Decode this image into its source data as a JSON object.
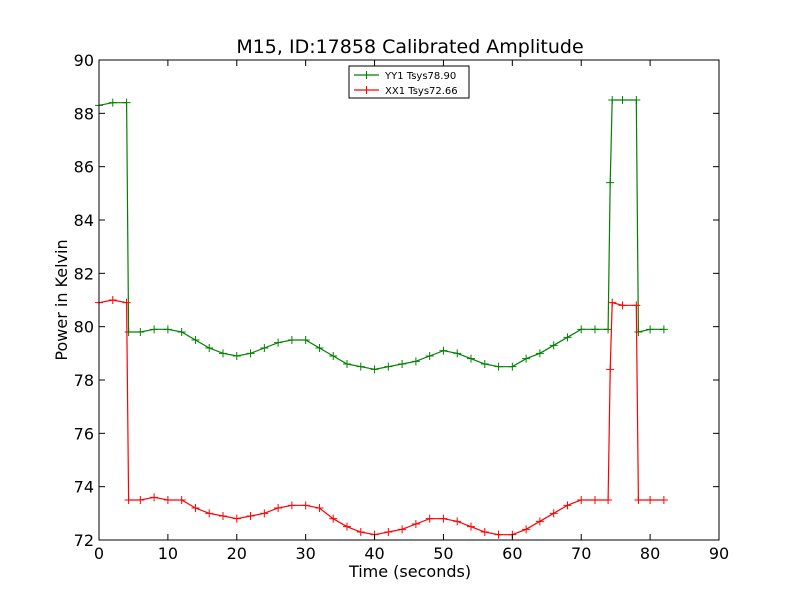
{
  "chart_data": {
    "type": "line",
    "title": "M15, ID:17858 Calibrated Amplitude",
    "xlabel": "Time (seconds)",
    "ylabel": "Power in Kelvin",
    "xlim": [
      0,
      90
    ],
    "ylim": [
      72,
      90
    ],
    "xticks": [
      0,
      10,
      20,
      30,
      40,
      50,
      60,
      70,
      80,
      90
    ],
    "yticks": [
      72,
      74,
      76,
      78,
      80,
      82,
      84,
      86,
      88,
      90
    ],
    "grid": false,
    "legend_position": "top-center",
    "series": [
      {
        "name": "YY1 Tsys78.90",
        "color": "#008000",
        "marker": "+",
        "x": [
          0,
          2,
          4,
          4.3,
          6,
          8,
          10,
          12,
          14,
          16,
          18,
          20,
          22,
          24,
          26,
          28,
          30,
          32,
          34,
          36,
          38,
          40,
          42,
          44,
          46,
          48,
          50,
          52,
          54,
          56,
          58,
          60,
          62,
          64,
          66,
          68,
          70,
          72,
          73.9,
          74.2,
          74.5,
          76,
          78,
          78.3,
          80,
          82
        ],
        "y": [
          88.3,
          88.4,
          88.4,
          79.8,
          79.8,
          79.9,
          79.9,
          79.8,
          79.5,
          79.2,
          79.0,
          78.9,
          79.0,
          79.2,
          79.4,
          79.5,
          79.5,
          79.2,
          78.9,
          78.6,
          78.5,
          78.4,
          78.5,
          78.6,
          78.7,
          78.9,
          79.1,
          79.0,
          78.8,
          78.6,
          78.5,
          78.5,
          78.8,
          79.0,
          79.3,
          79.6,
          79.9,
          79.9,
          79.9,
          85.4,
          88.5,
          88.5,
          88.5,
          79.8,
          79.9,
          79.9
        ]
      },
      {
        "name": "XX1 Tsys72.66",
        "color": "#ff0000",
        "marker": "+",
        "x": [
          0,
          2,
          4,
          4.3,
          6,
          8,
          10,
          12,
          14,
          16,
          18,
          20,
          22,
          24,
          26,
          28,
          30,
          32,
          34,
          36,
          38,
          40,
          42,
          44,
          46,
          48,
          50,
          52,
          54,
          56,
          58,
          60,
          62,
          64,
          66,
          68,
          70,
          72,
          73.9,
          74.2,
          74.5,
          76,
          78,
          78.3,
          80,
          82
        ],
        "y": [
          80.9,
          81.0,
          80.9,
          73.5,
          73.5,
          73.6,
          73.5,
          73.5,
          73.2,
          73.0,
          72.9,
          72.8,
          72.9,
          73.0,
          73.2,
          73.3,
          73.3,
          73.2,
          72.8,
          72.5,
          72.3,
          72.2,
          72.3,
          72.4,
          72.6,
          72.8,
          72.8,
          72.7,
          72.5,
          72.3,
          72.2,
          72.2,
          72.4,
          72.7,
          73.0,
          73.3,
          73.5,
          73.5,
          73.5,
          78.4,
          80.9,
          80.8,
          80.8,
          73.5,
          73.5,
          73.5
        ]
      }
    ]
  }
}
